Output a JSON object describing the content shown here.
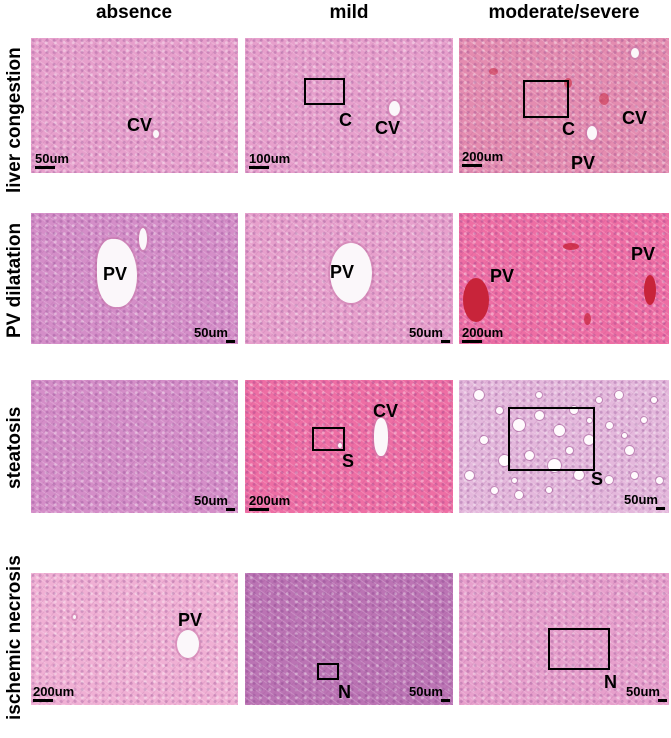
{
  "columns": [
    "absence",
    "mild",
    "moderate/severe"
  ],
  "rows": [
    {
      "label": "liver congestion",
      "panels": [
        {
          "texture": "normal",
          "labels": [
            "CV"
          ],
          "scale": "50um"
        },
        {
          "texture": "normal",
          "labels": [
            "C",
            "CV"
          ],
          "scale": "100um"
        },
        {
          "texture": "congested",
          "labels": [
            "C",
            "CV",
            "PV"
          ],
          "scale": "200um"
        }
      ]
    },
    {
      "label": "PV dilatation",
      "panels": [
        {
          "texture": "purple",
          "labels": [
            "PV"
          ],
          "scale": "50um"
        },
        {
          "texture": "normal",
          "labels": [
            "PV"
          ],
          "scale": "50um"
        },
        {
          "texture": "red",
          "labels": [
            "PV",
            "PV"
          ],
          "scale": "200um"
        }
      ]
    },
    {
      "label": "steatosis",
      "panels": [
        {
          "texture": "purple",
          "labels": [],
          "scale": "50um"
        },
        {
          "texture": "red",
          "labels": [
            "CV",
            "S"
          ],
          "scale": "200um"
        },
        {
          "texture": "fatty",
          "labels": [
            "S"
          ],
          "scale": "50um"
        }
      ]
    },
    {
      "label": "ischemic necrosis",
      "panels": [
        {
          "texture": "pale",
          "labels": [
            "PV"
          ],
          "scale": "200um"
        },
        {
          "texture": "dark",
          "labels": [
            "N"
          ],
          "scale": "50um"
        },
        {
          "texture": "normal",
          "labels": [
            "N"
          ],
          "scale": "50um"
        }
      ]
    }
  ],
  "colors": {
    "normal": "#e7a0cc",
    "purple": "#d48ec8",
    "red": "#ee6ea4",
    "congested": "#e48cb0",
    "fatty": "#e4b8dc",
    "pale": "#f0b0d4",
    "dark": "#bb74b4",
    "blood": "#c8243a"
  }
}
